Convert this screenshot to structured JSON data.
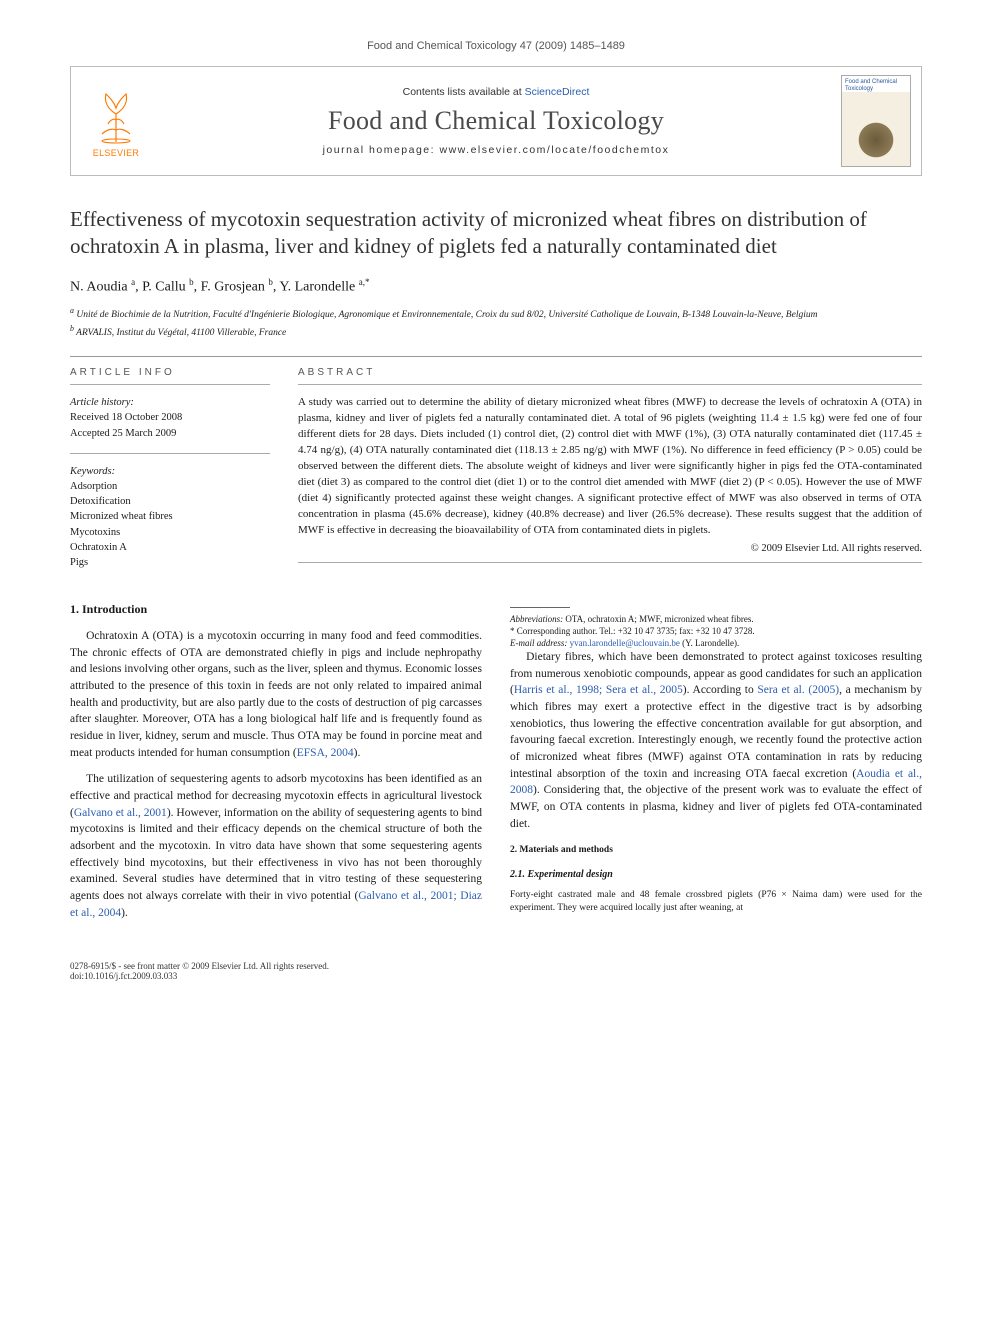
{
  "running_head": "Food and Chemical Toxicology 47 (2009) 1485–1489",
  "masthead": {
    "publisher": "ELSEVIER",
    "publisher_logo_color": "#ff7a00",
    "contents_prefix": "Contents lists available at ",
    "contents_link": "ScienceDirect",
    "journal": "Food and Chemical Toxicology",
    "homepage_prefix": "journal homepage: ",
    "homepage": "www.elsevier.com/locate/foodchemtox",
    "cover_caption": "Food and Chemical Toxicology"
  },
  "article": {
    "title": "Effectiveness of mycotoxin sequestration activity of micronized wheat fibres on distribution of ochratoxin A in plasma, liver and kidney of piglets fed a naturally contaminated diet",
    "authors_html": "N. Aoudia <sup>a</sup>, P. Callu <sup>b</sup>, F. Grosjean <sup>b</sup>, Y. Larondelle <sup>a,*</sup>",
    "affiliations": [
      "a Unité de Biochimie de la Nutrition, Faculté d'Ingénierie Biologique, Agronomique et Environnementale, Croix du sud 8/02, Université Catholique de Louvain, B-1348 Louvain-la-Neuve, Belgium",
      "b ARVALIS, Institut du Végétal, 41100 Villerable, France"
    ]
  },
  "info": {
    "heading": "ARTICLE INFO",
    "history_label": "Article history:",
    "received": "Received 18 October 2008",
    "accepted": "Accepted 25 March 2009",
    "keywords_label": "Keywords:",
    "keywords": [
      "Adsorption",
      "Detoxification",
      "Micronized wheat fibres",
      "Mycotoxins",
      "Ochratoxin A",
      "Pigs"
    ]
  },
  "abstract": {
    "heading": "ABSTRACT",
    "text": "A study was carried out to determine the ability of dietary micronized wheat fibres (MWF) to decrease the levels of ochratoxin A (OTA) in plasma, kidney and liver of piglets fed a naturally contaminated diet. A total of 96 piglets (weighting 11.4 ± 1.5 kg) were fed one of four different diets for 28 days. Diets included (1) control diet, (2) control diet with MWF (1%), (3) OTA naturally contaminated diet (117.45 ± 4.74 ng/g), (4) OTA naturally contaminated diet (118.13 ± 2.85 ng/g) with MWF (1%). No difference in feed efficiency (P > 0.05) could be observed between the different diets. The absolute weight of kidneys and liver were significantly higher in pigs fed the OTA-contaminated diet (diet 3) as compared to the control diet (diet 1) or to the control diet amended with MWF (diet 2) (P < 0.05). However the use of MWF (diet 4) significantly protected against these weight changes. A significant protective effect of MWF was also observed in terms of OTA concentration in plasma (45.6% decrease), kidney (40.8% decrease) and liver (26.5% decrease). These results suggest that the addition of MWF is effective in decreasing the bioavailability of OTA from contaminated diets in piglets.",
    "copyright": "© 2009 Elsevier Ltd. All rights reserved."
  },
  "body": {
    "intro_heading": "1. Introduction",
    "intro_p1": "Ochratoxin A (OTA) is a mycotoxin occurring in many food and feed commodities. The chronic effects of OTA are demonstrated chiefly in pigs and include nephropathy and lesions involving other organs, such as the liver, spleen and thymus. Economic losses attributed to the presence of this toxin in feeds are not only related to impaired animal health and productivity, but are also partly due to the costs of destruction of pig carcasses after slaughter. Moreover, OTA has a long biological half life and is frequently found as residue in liver, kidney, serum and muscle. Thus OTA may be found in porcine meat and meat products intended for human consumption (",
    "intro_p1_cite": "EFSA, 2004",
    "intro_p1_end": ").",
    "intro_p2a": "The utilization of sequestering agents to adsorb mycotoxins has been identified as an effective and practical method for decreasing mycotoxin effects in agricultural livestock (",
    "intro_p2_cite1": "Galvano et al., 2001",
    "intro_p2b": "). However, information on the ability of sequestering agents to bind mycotoxins is limited and their efficacy depends on the chemical structure of both the adsorbent and the mycotoxin. In vitro data have shown that some sequestering agents effectively bind myco",
    "intro_p2c": "toxins, but their effectiveness in vivo has not been thoroughly examined. Several studies have determined that in vitro testing of these sequestering agents does not always correlate with their in vivo potential (",
    "intro_p2_cite2": "Galvano et al., 2001; Diaz et al., 2004",
    "intro_p2d": ").",
    "intro_p3a": "Dietary fibres, which have been demonstrated to protect against toxicoses resulting from numerous xenobiotic compounds, appear as good candidates for such an application (",
    "intro_p3_cite1": "Harris et al., 1998; Sera et al., 2005",
    "intro_p3b": "). According to ",
    "intro_p3_cite2": "Sera et al. (2005)",
    "intro_p3c": ", a mechanism by which fibres may exert a protective effect in the digestive tract is by adsorbing xenobiotics, thus lowering the effective concentration available for gut absorption, and favouring faecal excretion. Interestingly enough, we recently found the protective action of micronized wheat fibres (MWF) against OTA contamination in rats by reducing intestinal absorption of the toxin and increasing OTA faecal excretion (",
    "intro_p3_cite3": "Aoudia et al., 2008",
    "intro_p3d": "). Considering that, the objective of the present work was to evaluate the effect of MWF, on OTA contents in plasma, kidney and liver of piglets fed OTA-contaminated diet.",
    "mm_heading": "2. Materials and methods",
    "mm_sub": "2.1. Experimental design",
    "mm_p1": "Forty-eight castrated male and 48 female crossbred piglets (P76 × Naima dam) were used for the experiment. They were acquired locally just after weaning, at"
  },
  "footnotes": {
    "abbrev_label": "Abbreviations:",
    "abbrev": " OTA, ochratoxin A; MWF, micronized wheat fibres.",
    "corr": "* Corresponding author. Tel.: +32 10 47 3735; fax: +32 10 47 3728.",
    "email_label": "E-mail address:",
    "email": " yvan.larondelle@uclouvain.be",
    "email_tail": " (Y. Larondelle)."
  },
  "footer": {
    "left1": "0278-6915/$ - see front matter © 2009 Elsevier Ltd. All rights reserved.",
    "left2": "doi:10.1016/j.fct.2009.03.033"
  },
  "colors": {
    "link": "#2a5db0",
    "publisher": "#ff7a00",
    "rule": "#999999",
    "text": "#1a1a1a"
  },
  "typography": {
    "title_fontsize_pt": 16,
    "journal_fontsize_pt": 20,
    "body_fontsize_pt": 9,
    "abstract_fontsize_pt": 8.5,
    "info_fontsize_pt": 8,
    "font_family_body": "Georgia, serif",
    "font_family_ui": "Arial, sans-serif"
  }
}
